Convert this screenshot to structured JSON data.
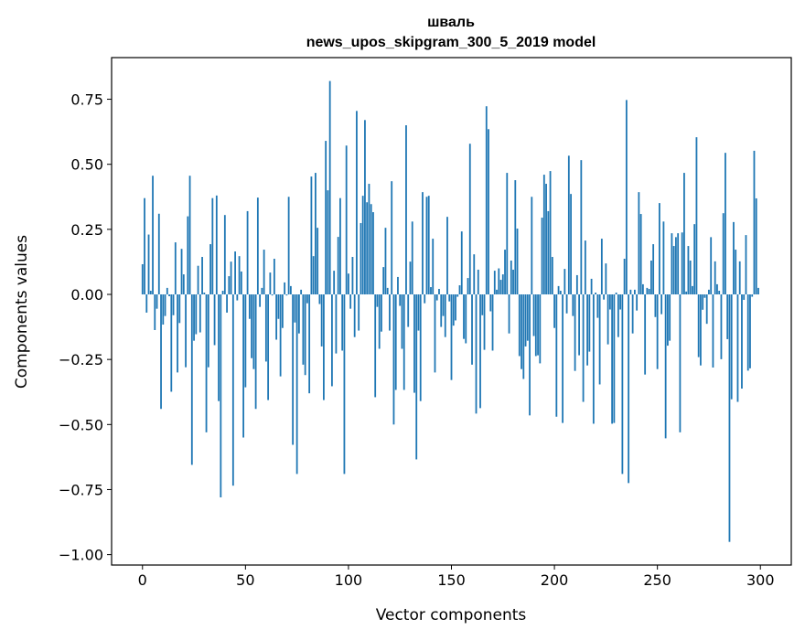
{
  "chart_data": {
    "type": "bar",
    "title": "шваль",
    "subtitle": "news_upos_skipgram_300_5_2019 model",
    "xlabel": "Vector components",
    "ylabel": "Components values",
    "xlim": [
      -15,
      315
    ],
    "ylim": [
      -1.04,
      0.91
    ],
    "grid": false,
    "bar_color": "#1f77b4",
    "xticks": [
      0,
      50,
      100,
      150,
      200,
      250,
      300
    ],
    "xtick_labels": [
      "0",
      "50",
      "100",
      "150",
      "200",
      "250",
      "300"
    ],
    "yticks": [
      -1.0,
      -0.75,
      -0.5,
      -0.25,
      0.0,
      0.25,
      0.5,
      0.75
    ],
    "ytick_labels": [
      "−1.00",
      "−0.75",
      "−0.50",
      "−0.25",
      "0.00",
      "0.25",
      "0.50",
      "0.75"
    ],
    "values": [
      0.116,
      0.37,
      -0.07,
      0.23,
      0.014,
      0.456,
      -0.137,
      -0.055,
      0.31,
      -0.44,
      -0.116,
      -0.083,
      0.025,
      -0.007,
      -0.374,
      -0.08,
      0.2,
      -0.3,
      -0.11,
      0.175,
      0.077,
      -0.28,
      0.3,
      0.456,
      -0.655,
      -0.178,
      -0.153,
      0.11,
      -0.146,
      0.144,
      0.007,
      -0.53,
      -0.28,
      0.193,
      0.37,
      -0.195,
      0.38,
      -0.41,
      -0.78,
      0.014,
      0.305,
      -0.07,
      0.07,
      0.126,
      -0.735,
      0.165,
      -0.023,
      0.147,
      0.088,
      -0.55,
      -0.357,
      0.32,
      -0.094,
      -0.245,
      -0.287,
      -0.44,
      0.372,
      -0.048,
      0.025,
      0.172,
      -0.258,
      -0.406,
      0.084,
      -0.004,
      0.137,
      -0.174,
      -0.094,
      -0.315,
      -0.129,
      0.046,
      -0.004,
      0.375,
      0.032,
      -0.578,
      -0.108,
      -0.69,
      -0.15,
      0.018,
      -0.27,
      -0.31,
      -0.034,
      -0.38,
      0.453,
      0.147,
      0.467,
      0.256,
      -0.037,
      -0.2,
      -0.406,
      0.59,
      0.4,
      0.82,
      -0.353,
      0.091,
      -0.227,
      0.221,
      0.37,
      -0.216,
      -0.69,
      0.572,
      0.08,
      -0.055,
      0.144,
      -0.164,
      0.705,
      -0.139,
      0.274,
      0.379,
      0.67,
      0.354,
      0.425,
      0.347,
      0.316,
      -0.395,
      -0.048,
      -0.209,
      -0.143,
      0.105,
      0.256,
      0.025,
      -0.139,
      0.435,
      -0.5,
      -0.367,
      0.067,
      -0.044,
      -0.209,
      -0.367,
      0.65,
      -0.125,
      0.126,
      0.28,
      -0.378,
      -0.634,
      -0.139,
      -0.41,
      0.393,
      -0.034,
      0.375,
      0.379,
      0.028,
      0.214,
      -0.3,
      -0.023,
      0.021,
      -0.125,
      -0.083,
      -0.164,
      0.298,
      -0.027,
      -0.329,
      -0.12,
      -0.1,
      -0.009,
      0.035,
      0.242,
      -0.171,
      -0.188,
      0.063,
      0.579,
      -0.27,
      0.154,
      -0.458,
      0.095,
      -0.437,
      -0.08,
      -0.213,
      0.723,
      0.635,
      -0.065,
      -0.216,
      0.091,
      0.018,
      0.1,
      0.056,
      0.077,
      0.172,
      0.467,
      -0.15,
      0.13,
      0.095,
      0.439,
      0.253,
      -0.237,
      -0.287,
      -0.325,
      -0.2,
      -0.178,
      -0.465,
      0.375,
      -0.16,
      -0.237,
      -0.234,
      -0.265,
      0.295,
      0.46,
      0.425,
      0.32,
      0.474,
      0.144,
      -0.129,
      -0.47,
      0.032,
      0.014,
      -0.494,
      0.098,
      -0.073,
      0.533,
      0.386,
      -0.083,
      -0.294,
      0.074,
      -0.234,
      0.516,
      -0.413,
      0.207,
      -0.273,
      -0.22,
      0.06,
      -0.497,
      0.007,
      -0.09,
      -0.346,
      0.214,
      -0.02,
      0.119,
      -0.192,
      -0.058,
      -0.497,
      -0.494,
      0.007,
      -0.164,
      -0.058,
      -0.69,
      0.137,
      0.747,
      -0.725,
      0.018,
      -0.15,
      0.018,
      -0.062,
      0.393,
      0.309,
      0.039,
      -0.308,
      0.025,
      0.021,
      0.13,
      0.193,
      -0.087,
      -0.287,
      0.351,
      -0.076,
      0.28,
      -0.553,
      -0.197,
      -0.178,
      0.235,
      0.186,
      0.22,
      0.235,
      -0.53,
      0.238,
      0.467,
      0.011,
      0.186,
      0.13,
      0.032,
      0.27,
      0.604,
      -0.241,
      -0.273,
      -0.059,
      -0.013,
      -0.113,
      0.018,
      0.22,
      -0.281,
      0.127,
      0.039,
      0.014,
      -0.249,
      0.312,
      0.544,
      -0.172,
      -0.951,
      -0.403,
      0.278,
      0.172,
      -0.413,
      0.127,
      -0.362,
      -0.021,
      0.228,
      -0.293,
      -0.284,
      -0.009,
      0.552,
      0.369,
      0.025
    ]
  }
}
